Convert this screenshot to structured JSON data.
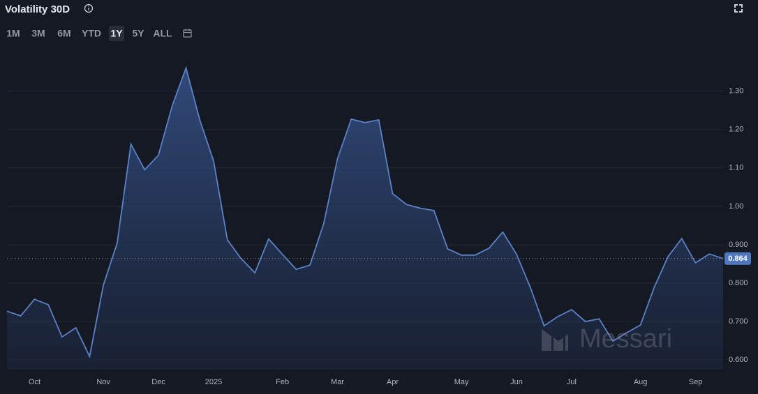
{
  "title": "Volatility 30D",
  "ranges": [
    "1M",
    "3M",
    "6M",
    "YTD",
    "1Y",
    "5Y",
    "ALL"
  ],
  "active_range": "1Y",
  "watermark": "Messari",
  "chart_data": {
    "type": "area",
    "color": "#5b82c6",
    "categories": [
      null,
      null,
      "Oct",
      null,
      null,
      null,
      null,
      "Nov",
      null,
      null,
      null,
      "Dec",
      null,
      null,
      null,
      "2025",
      null,
      null,
      null,
      null,
      "Feb",
      null,
      null,
      null,
      "Mar",
      null,
      null,
      null,
      "Apr",
      null,
      null,
      null,
      null,
      "May",
      null,
      null,
      null,
      "Jun",
      null,
      null,
      null,
      "Jul",
      null,
      null,
      null,
      null,
      "Aug",
      null,
      null,
      null,
      "Sep",
      null,
      null
    ],
    "values": [
      0.727,
      0.715,
      0.758,
      0.744,
      0.66,
      0.684,
      0.609,
      0.795,
      0.904,
      1.162,
      1.095,
      1.133,
      1.262,
      1.36,
      1.225,
      1.118,
      0.913,
      0.864,
      0.827,
      0.915,
      0.875,
      0.836,
      0.847,
      0.955,
      1.124,
      1.227,
      1.218,
      1.225,
      1.033,
      1.005,
      0.995,
      0.989,
      0.889,
      0.873,
      0.873,
      0.891,
      0.933,
      0.875,
      0.789,
      0.689,
      0.713,
      0.731,
      0.7,
      0.707,
      0.649,
      0.671,
      0.691,
      0.789,
      0.869,
      0.916,
      0.853,
      0.876,
      0.864
    ],
    "ylim": [
      0.575,
      1.41
    ],
    "yticks": [
      {
        "value": 0.6,
        "label": "0.600"
      },
      {
        "value": 0.7,
        "label": "0.700"
      },
      {
        "value": 0.8,
        "label": "0.800"
      },
      {
        "value": 0.9,
        "label": "0.900"
      },
      {
        "value": 1.0,
        "label": "1.00"
      },
      {
        "value": 1.1,
        "label": "1.10"
      },
      {
        "value": 1.2,
        "label": "1.20"
      },
      {
        "value": 1.3,
        "label": "1.30"
      }
    ],
    "grid": true
  }
}
